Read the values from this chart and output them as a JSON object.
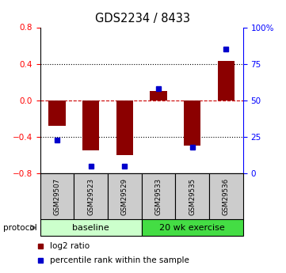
{
  "title": "GDS2234 / 8433",
  "samples": [
    "GSM29507",
    "GSM29523",
    "GSM29529",
    "GSM29533",
    "GSM29535",
    "GSM29536"
  ],
  "log2_ratio": [
    -0.28,
    -0.55,
    -0.6,
    0.1,
    -0.5,
    0.43
  ],
  "percentile_rank": [
    23,
    5,
    5,
    58,
    18,
    85
  ],
  "groups": [
    {
      "label": "baseline",
      "start": 0,
      "end": 3,
      "color": "#ccffcc"
    },
    {
      "label": "20 wk exercise",
      "start": 3,
      "end": 6,
      "color": "#44dd44"
    }
  ],
  "ylim_left": [
    -0.8,
    0.8
  ],
  "ylim_right": [
    0,
    100
  ],
  "yticks_left": [
    -0.8,
    -0.4,
    0.0,
    0.4,
    0.8
  ],
  "yticks_right": [
    0,
    25,
    50,
    75,
    100
  ],
  "ytick_labels_right": [
    "0",
    "25",
    "50",
    "75",
    "100%"
  ],
  "bar_color": "#8B0000",
  "dot_color": "#0000CC",
  "ref_line_color": "#CC0000",
  "background_color": "#ffffff",
  "plot_bg_color": "#ffffff",
  "sample_box_color": "#cccccc",
  "bar_width": 0.5,
  "legend_items": [
    {
      "color": "#8B0000",
      "label": "log2 ratio"
    },
    {
      "color": "#0000CC",
      "label": "percentile rank within the sample"
    }
  ],
  "protocol_label": "protocol"
}
